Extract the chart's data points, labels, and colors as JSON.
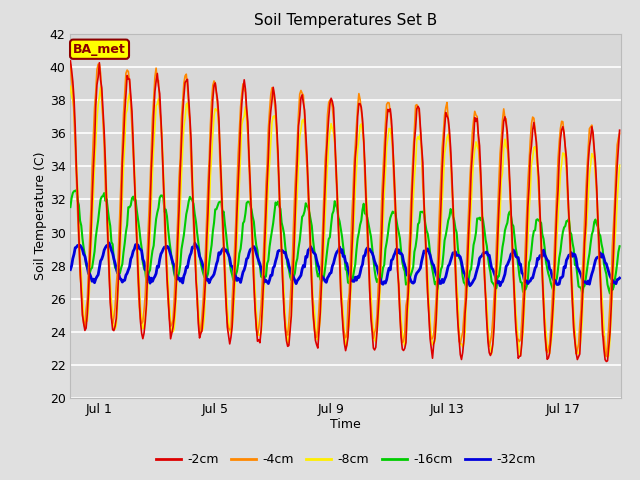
{
  "title": "Soil Temperatures Set B",
  "xlabel": "Time",
  "ylabel": "Soil Temperature (C)",
  "ylim": [
    20,
    42
  ],
  "xlim": [
    0,
    19
  ],
  "yticks": [
    20,
    22,
    24,
    26,
    28,
    30,
    32,
    34,
    36,
    38,
    40,
    42
  ],
  "xtick_positions": [
    1,
    5,
    9,
    13,
    17
  ],
  "xtick_labels": [
    "Jul 1",
    "Jul 5",
    "Jul 9",
    "Jul 13",
    "Jul 17"
  ],
  "fig_bg_color": "#e0e0e0",
  "plot_bg_color": "#d8d8d8",
  "annotation_text": "BA_met",
  "annotation_bg": "#ffff00",
  "annotation_border": "#8b0000",
  "lines": {
    "-2cm": {
      "color": "#dd0000",
      "lw": 1.2
    },
    "-4cm": {
      "color": "#ff8800",
      "lw": 1.2
    },
    "-8cm": {
      "color": "#ffee00",
      "lw": 1.2
    },
    "-16cm": {
      "color": "#00cc00",
      "lw": 1.5
    },
    "-32cm": {
      "color": "#0000dd",
      "lw": 2.0
    }
  },
  "legend_order": [
    "-2cm",
    "-4cm",
    "-8cm",
    "-16cm",
    "-32cm"
  ]
}
